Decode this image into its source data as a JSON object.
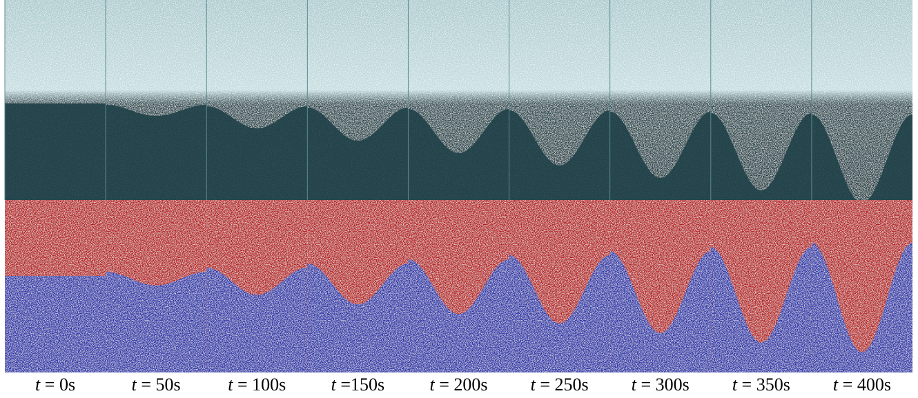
{
  "labels": [
    "t = 0s",
    "t = 50s",
    "t = 100s",
    "t =150s",
    "t = 200s",
    "t = 250s",
    "t = 300s",
    "t = 350s",
    "t = 400s"
  ]
}
